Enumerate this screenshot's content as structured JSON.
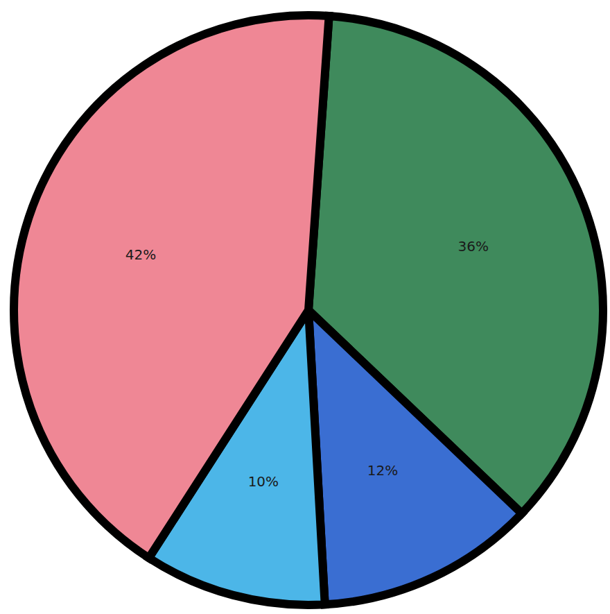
{
  "chart_data": {
    "type": "pie",
    "values": [
      36,
      12,
      10,
      42
    ],
    "value_labels": [
      "36%",
      "12%",
      "10%",
      "42%"
    ],
    "colors": [
      "#3f8a5c",
      "#3a6ed2",
      "#4cb6e8",
      "#ef8795"
    ],
    "data_labels": true
  }
}
